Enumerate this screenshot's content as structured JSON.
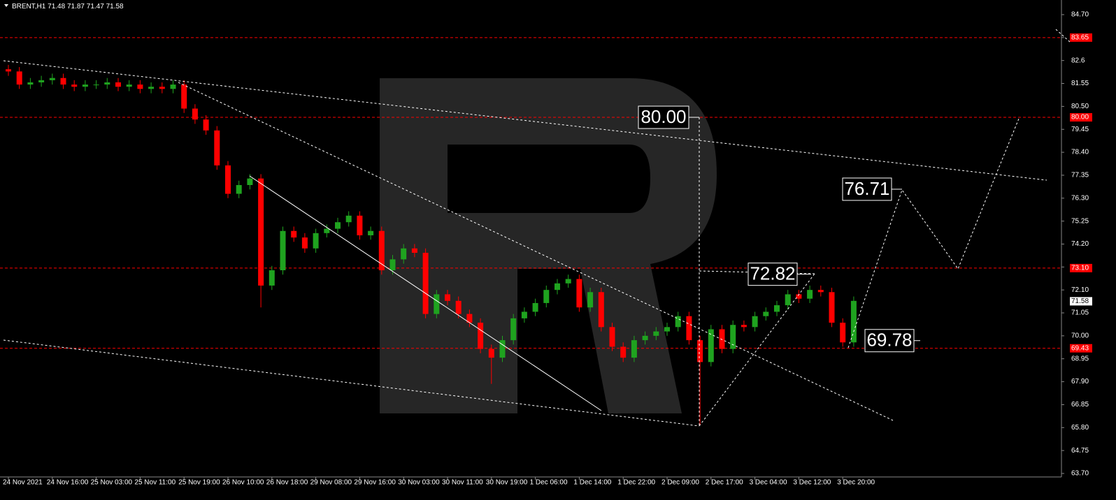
{
  "chart_data": {
    "type": "candlestick",
    "symbol": "BRENT,H1",
    "ohlc": [
      71.48,
      71.87,
      71.47,
      71.58
    ],
    "categories": [
      "24 Nov 2021",
      null,
      null,
      null,
      "24 Nov 16:00",
      null,
      null,
      null,
      "25 Nov 03:00",
      null,
      null,
      null,
      "25 Nov 11:00",
      null,
      null,
      null,
      "25 Nov 19:00",
      null,
      null,
      null,
      "26 Nov 10:00",
      null,
      null,
      null,
      "26 Nov 18:00",
      null,
      null,
      null,
      "29 Nov 08:00",
      null,
      null,
      null,
      "29 Nov 16:00",
      null,
      null,
      null,
      "30 Nov 03:00",
      null,
      null,
      null,
      "30 Nov 11:00",
      null,
      null,
      null,
      "30 Nov 19:00",
      null,
      null,
      null,
      "1 Dec 06:00",
      null,
      null,
      null,
      "1 Dec 14:00",
      null,
      null,
      null,
      "1 Dec 22:00",
      null,
      null,
      null,
      "2 Dec 09:00",
      null,
      null,
      null,
      "2 Dec 17:00",
      null,
      null,
      null,
      "3 Dec 04:00",
      null,
      null,
      null,
      "3 Dec 12:00",
      null,
      null,
      null,
      "3 Dec 20:00",
      null
    ],
    "open": [
      82.2,
      82.1,
      81.5,
      81.6,
      81.7,
      81.8,
      81.5,
      81.4,
      81.5,
      81.5,
      81.6,
      81.4,
      81.5,
      81.3,
      81.4,
      81.3,
      81.5,
      80.4,
      79.9,
      79.4,
      77.8,
      76.5,
      76.9,
      77.2,
      72.3,
      73.0,
      74.8,
      74.5,
      74.0,
      74.7,
      74.9,
      75.2,
      75.5,
      74.6,
      74.8,
      73.0,
      73.5,
      74.0,
      73.8,
      71.0,
      71.9,
      71.6,
      71.0,
      70.6,
      69.4,
      69.0,
      69.8,
      70.8,
      71.1,
      71.5,
      72.1,
      72.4,
      72.6,
      71.3,
      72.0,
      70.4,
      69.5,
      69.0,
      69.8,
      70.0,
      70.2,
      70.4,
      70.9,
      69.8,
      68.8,
      70.3,
      69.4,
      70.5,
      70.4,
      70.9,
      71.1,
      71.4,
      71.9,
      71.7,
      72.1,
      72.0,
      70.6,
      69.7
    ],
    "high": [
      82.4,
      82.3,
      81.8,
      81.9,
      82.0,
      82.0,
      81.7,
      81.7,
      81.7,
      81.8,
      81.8,
      81.7,
      81.7,
      81.6,
      81.6,
      81.7,
      81.7,
      80.6,
      80.1,
      79.6,
      78.0,
      77.1,
      77.4,
      77.4,
      73.2,
      75.0,
      75.0,
      74.7,
      74.9,
      75.1,
      75.4,
      75.7,
      75.7,
      75.0,
      75.0,
      73.7,
      74.2,
      74.2,
      74.0,
      72.1,
      72.1,
      71.8,
      71.2,
      70.8,
      69.6,
      70.0,
      71.0,
      71.3,
      71.7,
      72.3,
      72.6,
      72.8,
      72.8,
      72.2,
      72.2,
      70.6,
      69.7,
      70.0,
      70.2,
      70.4,
      70.6,
      71.1,
      71.1,
      70.0,
      70.5,
      70.5,
      70.7,
      70.7,
      71.1,
      71.3,
      71.6,
      72.1,
      72.1,
      72.3,
      72.3,
      72.2,
      70.8,
      71.8
    ],
    "low": [
      81.9,
      81.3,
      81.3,
      81.4,
      81.5,
      81.3,
      81.2,
      81.2,
      81.3,
      81.3,
      81.2,
      81.2,
      81.1,
      81.1,
      81.1,
      81.1,
      80.2,
      79.7,
      79.2,
      77.6,
      76.3,
      76.3,
      76.7,
      71.3,
      72.1,
      72.8,
      74.3,
      73.8,
      73.8,
      74.5,
      74.7,
      75.0,
      74.4,
      74.4,
      72.8,
      72.8,
      73.3,
      73.6,
      70.8,
      70.8,
      71.4,
      70.8,
      70.4,
      69.2,
      67.8,
      68.8,
      69.6,
      70.6,
      70.9,
      71.3,
      71.9,
      72.2,
      71.1,
      71.1,
      70.2,
      69.3,
      68.8,
      68.8,
      69.6,
      69.8,
      70.0,
      70.2,
      69.6,
      65.9,
      68.6,
      69.2,
      69.2,
      70.2,
      70.2,
      70.7,
      70.9,
      71.2,
      71.5,
      71.5,
      71.8,
      70.4,
      69.5,
      69.5
    ],
    "close": [
      82.1,
      81.5,
      81.6,
      81.7,
      81.8,
      81.5,
      81.4,
      81.5,
      81.5,
      81.6,
      81.4,
      81.5,
      81.3,
      81.4,
      81.3,
      81.5,
      80.4,
      79.9,
      79.4,
      77.8,
      76.5,
      76.9,
      77.2,
      72.3,
      73.0,
      74.8,
      74.5,
      74.0,
      74.7,
      74.9,
      75.2,
      75.5,
      74.6,
      74.8,
      73.0,
      73.5,
      74.0,
      73.8,
      71.0,
      71.9,
      71.6,
      71.0,
      70.6,
      69.4,
      69.0,
      69.8,
      70.8,
      71.1,
      71.5,
      72.1,
      72.4,
      72.6,
      71.3,
      72.0,
      70.4,
      69.5,
      69.0,
      69.8,
      70.0,
      70.2,
      70.4,
      70.9,
      69.8,
      68.8,
      70.3,
      69.4,
      70.5,
      70.4,
      70.9,
      71.1,
      71.4,
      71.9,
      71.7,
      72.1,
      72.0,
      70.6,
      69.7,
      71.6
    ],
    "up_color": "#1fa31f",
    "down_color": "#ff0000",
    "ylim": [
      63.54,
      85.37
    ],
    "yticks": [
      {
        "value": 84.7,
        "label": "84.70"
      },
      83.65,
      82.6,
      81.55,
      {
        "value": 80.5,
        "label": "80.50"
      },
      79.45,
      {
        "value": 78.4,
        "label": "78.40"
      },
      77.35,
      {
        "value": 76.3,
        "label": "76.30"
      },
      75.25,
      {
        "value": 74.2,
        "label": "74.20"
      },
      73.15,
      {
        "value": 72.1,
        "label": "72.10"
      },
      71.05,
      {
        "value": 70.0,
        "label": "70.00"
      },
      68.95,
      {
        "value": 67.9,
        "label": "67.90"
      },
      66.85,
      {
        "value": 65.8,
        "label": "65.80"
      },
      64.75,
      {
        "value": 63.7,
        "label": "63.70"
      }
    ],
    "levels": [
      83.65,
      {
        "value": 80.0,
        "label": "80.00"
      },
      {
        "value": 73.1,
        "label": "73.10"
      },
      69.43
    ],
    "level_color": "#ff0000",
    "current_price": 71.58,
    "annotations": [
      {
        "value": 80.0,
        "label": "80.00"
      },
      72.82,
      76.71,
      69.78
    ]
  }
}
